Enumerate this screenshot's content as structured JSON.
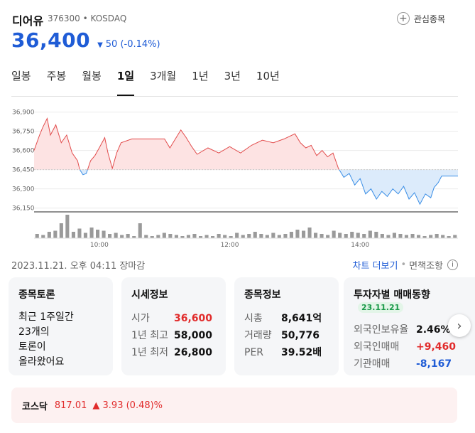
{
  "stock": {
    "name": "디어유",
    "code_market": "376300 • KOSDAQ",
    "price": "36,400",
    "change": "50",
    "change_pct": "(-0.14%)",
    "direction": "down"
  },
  "watchlist": {
    "label": "관심종목"
  },
  "tabs": [
    {
      "label": "일봉",
      "active": false
    },
    {
      "label": "주봉",
      "active": false
    },
    {
      "label": "월봉",
      "active": false
    },
    {
      "label": "1일",
      "active": true
    },
    {
      "label": "3개월",
      "active": false
    },
    {
      "label": "1년",
      "active": false
    },
    {
      "label": "3년",
      "active": false
    },
    {
      "label": "10년",
      "active": false
    }
  ],
  "chart_data": {
    "type": "line",
    "x_start": "09:00",
    "x_end": "15:30",
    "x_ticks": [
      "10:00",
      "12:00",
      "14:00"
    ],
    "y_ticks": [
      "36,900",
      "36,750",
      "36,600",
      "36,450",
      "36,300",
      "36,150"
    ],
    "ylim": [
      36120,
      36920
    ],
    "baseline": 36450,
    "up_color": "#e24c4c",
    "down_color": "#3a8ee6",
    "series": [
      {
        "points": [
          [
            "09:00",
            36600
          ],
          [
            "09:05",
            36720
          ],
          [
            "09:08",
            36780
          ],
          [
            "09:12",
            36850
          ],
          [
            "09:15",
            36720
          ],
          [
            "09:20",
            36800
          ],
          [
            "09:25",
            36660
          ],
          [
            "09:30",
            36720
          ],
          [
            "09:35",
            36580
          ],
          [
            "09:40",
            36520
          ],
          [
            "09:42",
            36450
          ],
          [
            "09:45",
            36410
          ],
          [
            "09:48",
            36420
          ],
          [
            "09:52",
            36520
          ],
          [
            "09:56",
            36560
          ],
          [
            "10:00",
            36620
          ],
          [
            "10:05",
            36700
          ],
          [
            "10:08",
            36580
          ],
          [
            "10:12",
            36460
          ],
          [
            "10:16",
            36580
          ],
          [
            "10:20",
            36660
          ],
          [
            "10:30",
            36690
          ],
          [
            "10:40",
            36690
          ],
          [
            "10:50",
            36690
          ],
          [
            "11:00",
            36690
          ],
          [
            "11:05",
            36620
          ],
          [
            "11:10",
            36690
          ],
          [
            "11:15",
            36760
          ],
          [
            "11:20",
            36700
          ],
          [
            "11:25",
            36630
          ],
          [
            "11:30",
            36570
          ],
          [
            "11:40",
            36620
          ],
          [
            "11:50",
            36580
          ],
          [
            "12:00",
            36630
          ],
          [
            "12:10",
            36580
          ],
          [
            "12:20",
            36640
          ],
          [
            "12:30",
            36680
          ],
          [
            "12:40",
            36660
          ],
          [
            "12:50",
            36690
          ],
          [
            "13:00",
            36730
          ],
          [
            "13:05",
            36660
          ],
          [
            "13:10",
            36620
          ],
          [
            "13:15",
            36640
          ],
          [
            "13:20",
            36560
          ],
          [
            "13:25",
            36600
          ],
          [
            "13:30",
            36550
          ],
          [
            "13:35",
            36580
          ],
          [
            "13:40",
            36460
          ],
          [
            "13:45",
            36390
          ],
          [
            "13:50",
            36420
          ],
          [
            "13:55",
            36330
          ],
          [
            "14:00",
            36380
          ],
          [
            "14:05",
            36260
          ],
          [
            "14:10",
            36300
          ],
          [
            "14:15",
            36220
          ],
          [
            "14:20",
            36280
          ],
          [
            "14:25",
            36240
          ],
          [
            "14:30",
            36300
          ],
          [
            "14:35",
            36260
          ],
          [
            "14:40",
            36320
          ],
          [
            "14:45",
            36220
          ],
          [
            "14:50",
            36270
          ],
          [
            "14:55",
            36180
          ],
          [
            "15:00",
            36260
          ],
          [
            "15:05",
            36230
          ],
          [
            "15:08",
            36310
          ],
          [
            "15:12",
            36350
          ],
          [
            "15:15",
            36400
          ],
          [
            "15:20",
            36400
          ],
          [
            "15:30",
            36400
          ]
        ]
      }
    ],
    "volume": [
      4,
      3,
      6,
      7,
      14,
      22,
      6,
      9,
      5,
      10,
      8,
      7,
      4,
      5,
      3,
      4,
      2,
      14,
      3,
      2,
      3,
      5,
      4,
      3,
      2,
      3,
      4,
      2,
      3,
      2,
      4,
      3,
      2,
      5,
      3,
      4,
      6,
      4,
      3,
      5,
      3,
      4,
      6,
      8,
      7,
      10,
      5,
      4,
      3,
      7,
      5,
      4,
      6,
      5,
      4,
      7,
      6,
      4,
      3,
      5,
      4,
      3,
      4,
      3,
      2,
      3,
      4,
      3,
      2,
      3
    ]
  },
  "meta": {
    "timestamp": "2023.11.21. 오후 04:11 장마감",
    "more_chart": "차트 더보기",
    "disclaimer": "면책조항"
  },
  "forum": {
    "title": "종목토론",
    "lines": [
      "최근 1주일간",
      "23개의",
      "토론이",
      "올라왔어요"
    ]
  },
  "quote": {
    "title": "시세정보",
    "rows": [
      {
        "k": "시가",
        "v": "36,600"
      },
      {
        "k": "1년 최고",
        "v": "58,000"
      },
      {
        "k": "1년 최저",
        "v": "26,800"
      }
    ]
  },
  "info": {
    "title": "종목정보",
    "rows": [
      {
        "k": "시총",
        "v": "8,641억"
      },
      {
        "k": "거래량",
        "v": "50,776"
      },
      {
        "k": "PER",
        "v": "39.52배"
      }
    ]
  },
  "investor": {
    "title": "투자자별 매매동향",
    "date": "23.11.21",
    "rows": [
      {
        "k": "외국인보유율",
        "v": "2.46%"
      },
      {
        "k": "외국인매매",
        "v": "+9,460"
      },
      {
        "k": "기관매매",
        "v": "-8,167"
      }
    ]
  },
  "index": {
    "name": "코스닥",
    "value": "817.01",
    "change": "▲ 3.93 (0.48)%"
  }
}
